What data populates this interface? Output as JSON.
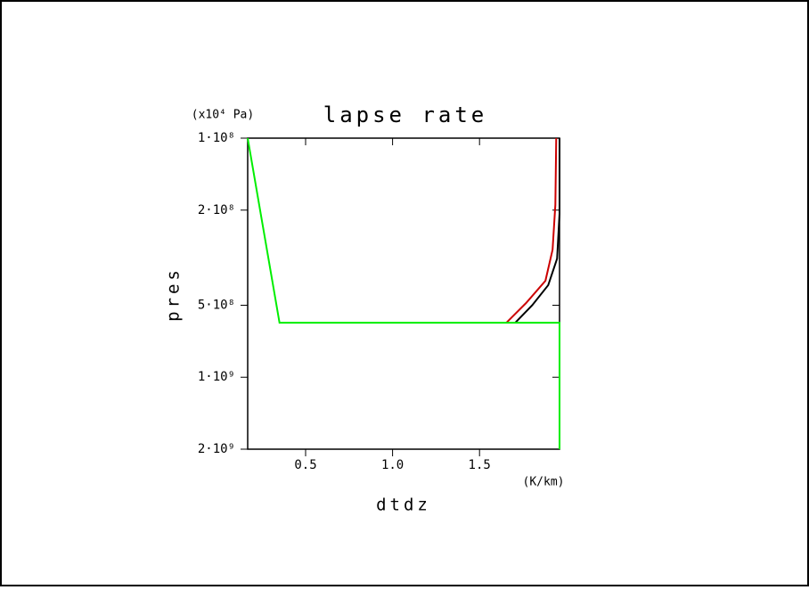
{
  "chart_data": {
    "type": "line",
    "title": "lapse rate",
    "xlabel": "dtdz",
    "ylabel": "pres",
    "x_unit": "(K/km)",
    "y_unit": "(x10⁴ Pa)",
    "xlim": [
      0.167,
      1.96
    ],
    "ylim": [
      2000000000,
      100000000
    ],
    "ylog": true,
    "xticks": [
      0.5,
      {
        "value": 1,
        "label": "1.0"
      },
      1.5
    ],
    "yticks": [
      {
        "value": 100000000,
        "label": "1·10⁸"
      },
      {
        "value": 200000000,
        "label": "2·10⁸"
      },
      {
        "value": 500000000,
        "label": "5·10⁸"
      },
      {
        "value": 1000000000,
        "label": "1·10⁹"
      },
      {
        "value": 2000000000,
        "label": "2·10⁹"
      }
    ],
    "series": [
      {
        "color": "#000000",
        "x": [
          1.705,
          1.803,
          1.895,
          1.946,
          1.96,
          1.96
        ],
        "values": [
          592000000,
          500000000,
          412000000,
          319000000,
          207000000,
          100000000
        ]
      },
      {
        "color": "#cc0000",
        "x": [
          1.654,
          1.767,
          1.879,
          1.92,
          1.936,
          1.941
        ],
        "values": [
          592000000,
          490000000,
          395000000,
          293000000,
          190000000,
          100000000
        ]
      },
      {
        "color": "#00ee00",
        "x": [
          0.167,
          0.35,
          1.96,
          1.96
        ],
        "values": [
          100000000,
          592000000,
          592000000,
          2000000000
        ]
      }
    ]
  }
}
